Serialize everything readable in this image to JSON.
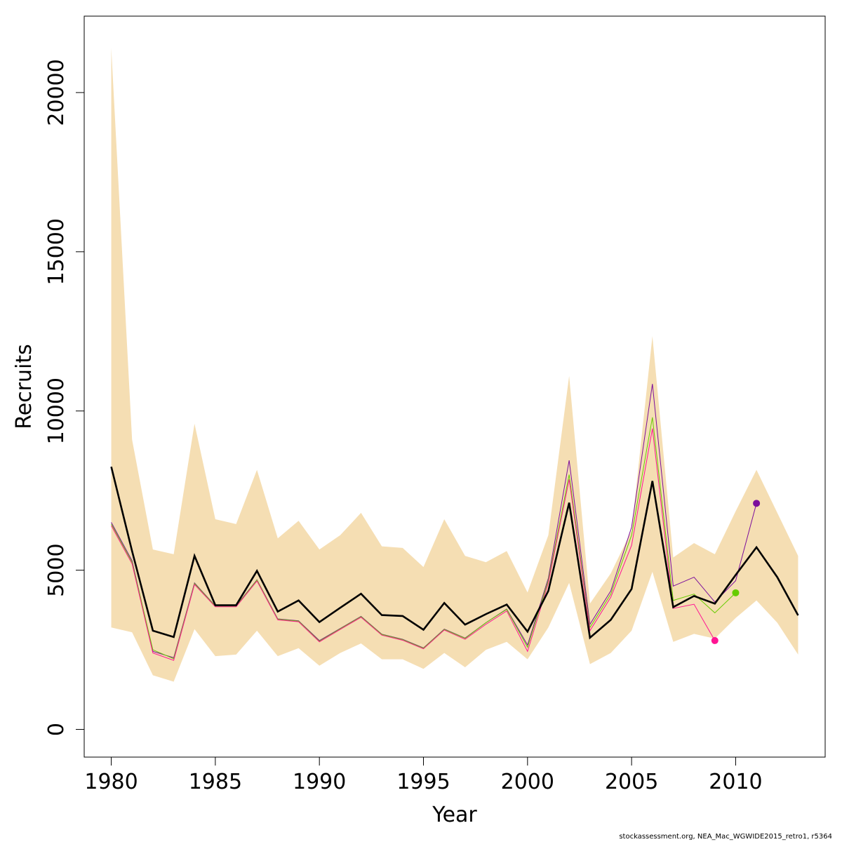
{
  "chart_data": {
    "type": "line",
    "xlabel": "Year",
    "ylabel": "Recruits",
    "xlim": [
      1978.7,
      2014.3
    ],
    "ylim": [
      -870,
      22400
    ],
    "xticks": [
      1980,
      1985,
      1990,
      1995,
      2000,
      2005,
      2010
    ],
    "yticks": [
      0,
      5000,
      10000,
      15000,
      20000
    ],
    "colors": {
      "band": "#f5deb3",
      "main": "#000000",
      "retro_2011": "#7b0e9c",
      "retro_2010": "#66cc00",
      "retro_2009": "#ff1493"
    },
    "band": {
      "x": [
        1980,
        1981,
        1982,
        1983,
        1984,
        1985,
        1986,
        1987,
        1988,
        1989,
        1990,
        1991,
        1992,
        1993,
        1994,
        1995,
        1996,
        1997,
        1998,
        1999,
        2000,
        2001,
        2002,
        2003,
        2004,
        2005,
        2006,
        2007,
        2008,
        2009,
        2010,
        2011,
        2012,
        2013
      ],
      "upper": [
        21400,
        9100,
        5650,
        5500,
        9600,
        6600,
        6450,
        8150,
        6000,
        6550,
        5650,
        6100,
        6800,
        5750,
        5700,
        5100,
        6600,
        5450,
        5250,
        5600,
        4300,
        6100,
        11100,
        3950,
        4900,
        6250,
        12350,
        5400,
        5850,
        5500,
        6850,
        8150,
        6800,
        5450
      ],
      "lower": [
        3200,
        3050,
        1700,
        1500,
        3150,
        2300,
        2350,
        3100,
        2300,
        2550,
        2000,
        2400,
        2700,
        2200,
        2200,
        1900,
        2400,
        1950,
        2500,
        2750,
        2200,
        3200,
        4600,
        2050,
        2400,
        3100,
        4950,
        2750,
        3000,
        2850,
        3500,
        4050,
        3350,
        2350
      ]
    },
    "series": [
      {
        "x": [
          1980,
          1981,
          1982,
          1983,
          1984,
          1985,
          1986,
          1987,
          1988,
          1989,
          1990,
          1991,
          1992,
          1993,
          1994,
          1995,
          1996,
          1997,
          1998,
          1999,
          2000,
          2001,
          2002,
          2003,
          2004,
          2005,
          2006,
          2007,
          2008,
          2009,
          2010,
          2011,
          2012,
          2013
        ],
        "values": [
          8250,
          5600,
          3100,
          2900,
          5450,
          3900,
          3900,
          4980,
          3700,
          4050,
          3370,
          3820,
          4260,
          3590,
          3560,
          3130,
          3970,
          3290,
          3620,
          3920,
          3070,
          4350,
          7120,
          2880,
          3440,
          4410,
          7800,
          3840,
          4190,
          3950,
          4850,
          5720,
          4780,
          3580
        ],
        "style": "bold"
      },
      {
        "x": [
          1980,
          1981,
          1982,
          1983,
          1984,
          1985,
          1986,
          1987,
          1988,
          1989,
          1990,
          1991,
          1992,
          1993,
          1994,
          1995,
          1996,
          1997,
          1998,
          1999,
          2000,
          2001,
          2002,
          2003,
          2004,
          2005,
          2006,
          2007,
          2008,
          2009,
          2010,
          2011
        ],
        "values": [
          6500,
          5300,
          2450,
          2250,
          4600,
          3880,
          3880,
          4700,
          3470,
          3410,
          2790,
          3170,
          3550,
          2990,
          2830,
          2560,
          3150,
          2870,
          3350,
          3780,
          2650,
          4750,
          8450,
          3300,
          4350,
          6350,
          10850,
          4500,
          4780,
          4000,
          4670,
          7100
        ],
        "color_key": "retro_2011",
        "end_marker": true
      },
      {
        "x": [
          1980,
          1981,
          1982,
          1983,
          1984,
          1985,
          1986,
          1987,
          1988,
          1989,
          1990,
          1991,
          1992,
          1993,
          1994,
          1995,
          1996,
          1997,
          1998,
          1999,
          2000,
          2001,
          2002,
          2003,
          2004,
          2005,
          2006,
          2007,
          2008,
          2009,
          2010
        ],
        "values": [
          6450,
          5250,
          2500,
          2220,
          4580,
          3870,
          3870,
          4690,
          3460,
          3400,
          2770,
          3160,
          3540,
          2980,
          2820,
          2550,
          3140,
          2860,
          3350,
          3770,
          2580,
          4680,
          8000,
          3200,
          4250,
          6100,
          9800,
          4050,
          4250,
          3660,
          4290
        ],
        "color_key": "retro_2010",
        "end_marker": true
      },
      {
        "x": [
          1980,
          1981,
          1982,
          1983,
          1984,
          1985,
          1986,
          1987,
          1988,
          1989,
          1990,
          1991,
          1992,
          1993,
          1994,
          1995,
          1996,
          1997,
          1998,
          1999,
          2000,
          2001,
          2002,
          2003,
          2004,
          2005,
          2006,
          2007,
          2008,
          2009
        ],
        "values": [
          6400,
          5200,
          2400,
          2170,
          4550,
          3850,
          3850,
          4660,
          3440,
          3380,
          2750,
          3140,
          3520,
          2960,
          2800,
          2530,
          3120,
          2830,
          3300,
          3720,
          2450,
          4600,
          7850,
          3100,
          4150,
          5780,
          9450,
          3800,
          3930,
          2790
        ],
        "color_key": "retro_2009",
        "end_marker": true
      }
    ]
  },
  "credit": "stockassessment.org, NEA_Mac_WGWIDE2015_retro1, r5364"
}
